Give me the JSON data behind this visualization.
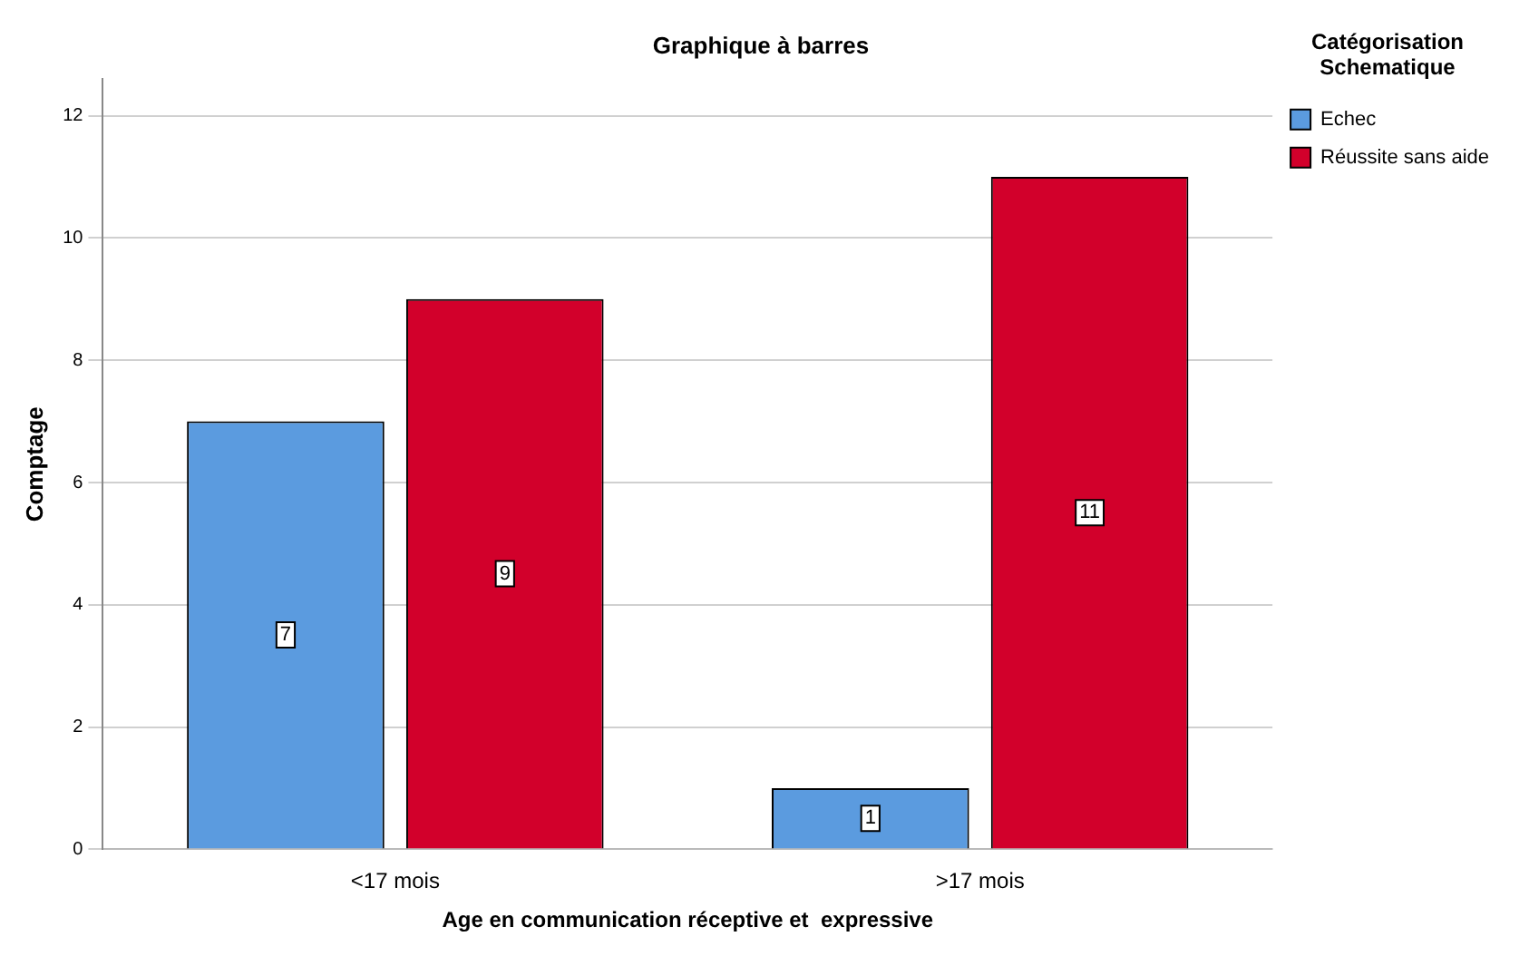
{
  "chart_data": {
    "type": "bar",
    "title": "Graphique à barres",
    "xlabel": "Age en communication réceptive et  expressive",
    "ylabel": "Comptage",
    "legend_title": "Catégorisation Schematique",
    "categories": [
      "<17 mois",
      ">17 mois"
    ],
    "series": [
      {
        "name": "Echec",
        "color": "#5b9bdf",
        "values": [
          7,
          1
        ]
      },
      {
        "name": "Réussite sans aide",
        "color": "#d2002b",
        "values": [
          9,
          11
        ]
      }
    ],
    "ylim": [
      0,
      12.6
    ],
    "yticks": [
      0,
      2,
      4,
      6,
      8,
      10,
      12
    ],
    "grid": "y",
    "legend": "top right",
    "data_labels": true
  }
}
